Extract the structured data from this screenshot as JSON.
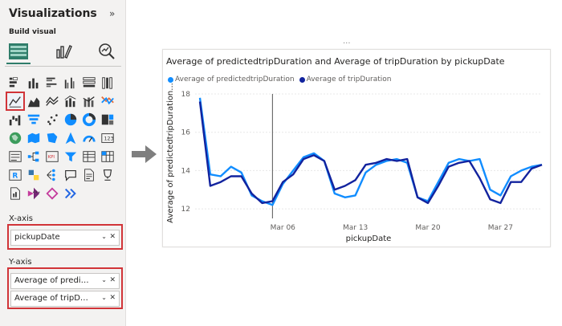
{
  "pane": {
    "title": "Visualizations",
    "collapse_glyph": "»",
    "build_label": "Build visual",
    "more_glyph": "···",
    "x_axis": {
      "label": "X-axis",
      "fields": [
        "pickupDate"
      ]
    },
    "y_axis": {
      "label": "Y-axis",
      "fields": [
        "Average of predictedtripDuration",
        "Average of tripDuration"
      ]
    }
  },
  "header_menu_glyph": "···",
  "chart_data": {
    "type": "line",
    "title": "Average of predictedtripDuration and Average of tripDuration by pickupDate",
    "xlabel": "pickupDate",
    "ylabel": "Average of predictedtripDuration...",
    "ylim": [
      11.5,
      18
    ],
    "yticks": [
      12,
      14,
      16,
      18
    ],
    "xticks": [
      "Mar 06",
      "Mar 13",
      "Mar 20",
      "Mar 27"
    ],
    "x": [
      "Feb 26",
      "Feb 27",
      "Feb 28",
      "Mar 01",
      "Mar 02",
      "Mar 03",
      "Mar 04",
      "Mar 05",
      "Mar 06",
      "Mar 07",
      "Mar 08",
      "Mar 09",
      "Mar 10",
      "Mar 11",
      "Mar 12",
      "Mar 13",
      "Mar 14",
      "Mar 15",
      "Mar 16",
      "Mar 17",
      "Mar 18",
      "Mar 19",
      "Mar 20",
      "Mar 21",
      "Mar 22",
      "Mar 23",
      "Mar 24",
      "Mar 25",
      "Mar 26",
      "Mar 27",
      "Mar 28",
      "Mar 29",
      "Mar 30",
      "Mar 31"
    ],
    "series": [
      {
        "name": "Average of predictedtripDuration",
        "color": "#118dff",
        "values": [
          17.8,
          13.8,
          13.7,
          14.2,
          13.9,
          12.7,
          12.4,
          12.2,
          13.3,
          14.0,
          14.7,
          14.9,
          14.5,
          12.8,
          12.6,
          12.7,
          13.9,
          14.3,
          14.5,
          14.6,
          14.4,
          12.6,
          12.4,
          13.4,
          14.4,
          14.6,
          14.5,
          14.6,
          13.0,
          12.7,
          13.7,
          14.0,
          14.2,
          14.3
        ]
      },
      {
        "name": "Average of tripDuration",
        "color": "#12239e",
        "values": [
          17.6,
          13.2,
          13.4,
          13.7,
          13.7,
          12.8,
          12.3,
          12.4,
          13.4,
          13.8,
          14.6,
          14.8,
          14.5,
          13.0,
          13.2,
          13.5,
          14.3,
          14.4,
          14.6,
          14.5,
          14.6,
          12.6,
          12.3,
          13.2,
          14.2,
          14.4,
          14.5,
          13.6,
          12.5,
          12.3,
          13.4,
          13.4,
          14.1,
          14.3
        ]
      }
    ],
    "cursor_x": "Mar 05",
    "legend_position": "top-left",
    "grid": true
  }
}
